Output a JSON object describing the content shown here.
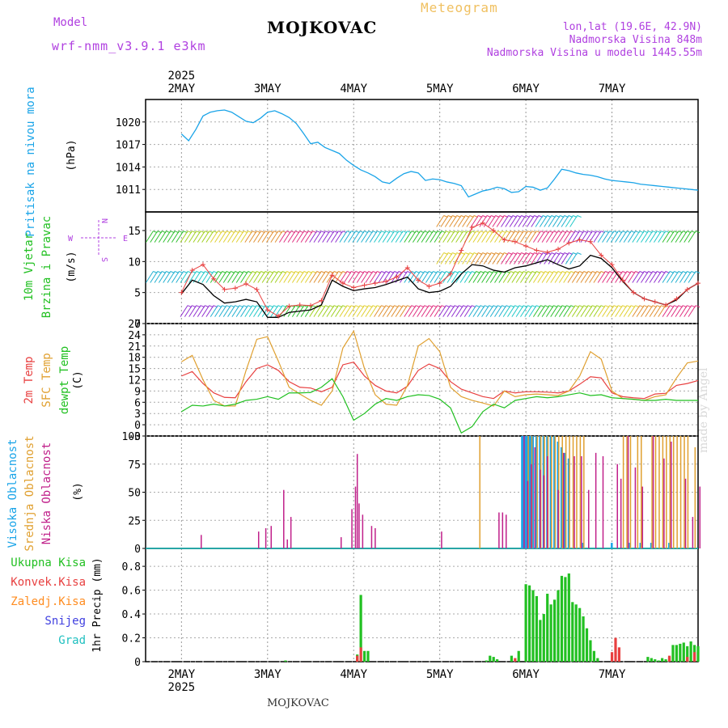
{
  "header": {
    "model_label": "Model",
    "model_name": "wrf-nmm_v3.9.1 e3km",
    "station": "MOJKOVAC",
    "meteogram": "Meteogram",
    "lonlat": "lon,lat (19.6E, 42.9N)",
    "elevation": "Nadmorska Visina 848m",
    "model_elevation": "Nadmorska Visina u modelu 1445.55m",
    "footer": "MOJKOVAC",
    "watermark": "made by Angel"
  },
  "colors": {
    "pressure": "#1aa4e8",
    "wind_green": "#22c022",
    "temp2m": "#e84040",
    "sfc": "#e0a030",
    "dew": "#20c020",
    "high_cloud": "#1aa4e8",
    "mid_cloud": "#e0a030",
    "low_cloud": "#c0208a",
    "purple": "#b040e0",
    "frozen": "#ff8c20",
    "snow": "#4040e0",
    "hail": "#20c0c0"
  },
  "chart_data": [
    {
      "type": "line",
      "name": "pressure",
      "title": "Pritisak na nivou mora",
      "ylabel": "(hPa)",
      "yticks": [
        "1011",
        "1014",
        "1017",
        "1020"
      ],
      "ylim": [
        1008,
        1023
      ],
      "x_days": [
        "2MAY",
        "3MAY",
        "4MAY",
        "5MAY",
        "6MAY",
        "7MAY"
      ],
      "year": "2025",
      "x": [
        0,
        2,
        4,
        6,
        8,
        10,
        12,
        14,
        16,
        18,
        20,
        22,
        24,
        26,
        28,
        30,
        32,
        34,
        36,
        38,
        40,
        42,
        44,
        46,
        48,
        50,
        52,
        54,
        56,
        58,
        60,
        62,
        64,
        66,
        68,
        70,
        72,
        74,
        76,
        78,
        80,
        82,
        84,
        86,
        88,
        90,
        92,
        94,
        96,
        98,
        100,
        102,
        104,
        106,
        108,
        110,
        112,
        114,
        116,
        118,
        120,
        122,
        124,
        126,
        128,
        130,
        132,
        134,
        136,
        138,
        140,
        142,
        144
      ],
      "values": [
        1018.4,
        1017.5,
        1019.0,
        1020.8,
        1021.3,
        1021.5,
        1021.6,
        1021.3,
        1020.7,
        1020.1,
        1019.9,
        1020.5,
        1021.3,
        1021.5,
        1021.1,
        1020.6,
        1019.8,
        1018.5,
        1017.1,
        1017.3,
        1016.6,
        1016.2,
        1015.8,
        1014.9,
        1014.2,
        1013.6,
        1013.2,
        1012.7,
        1012.0,
        1011.8,
        1012.5,
        1013.1,
        1013.4,
        1013.2,
        1012.2,
        1012.4,
        1012.3,
        1012.0,
        1011.8,
        1011.5,
        1010.0,
        1010.4,
        1010.8,
        1011.0,
        1011.3,
        1011.1,
        1010.6,
        1010.7,
        1011.4,
        1011.3,
        1010.9,
        1011.2,
        1012.4,
        1013.7,
        1013.5,
        1013.2,
        1013.0,
        1012.9,
        1012.7,
        1012.4,
        1012.2,
        1012.1,
        1012.0,
        1011.9,
        1011.7,
        1011.6,
        1011.5,
        1011.4,
        1011.3,
        1011.2,
        1011.1,
        1011.0,
        1010.9
      ]
    },
    {
      "type": "line",
      "name": "wind",
      "title_lines": [
        "10m Vjetar",
        "Brzina i Pravac"
      ],
      "ylabel": "(m/s)",
      "yticks": [
        "0",
        "5",
        "10",
        "15"
      ],
      "ylim": [
        0,
        18
      ],
      "compass": {
        "n": "N",
        "s": "S",
        "e": "E",
        "w": "W"
      },
      "x": [
        0,
        3,
        6,
        9,
        12,
        15,
        18,
        21,
        24,
        27,
        30,
        33,
        36,
        39,
        42,
        45,
        48,
        51,
        54,
        57,
        60,
        63,
        66,
        69,
        72,
        75,
        78,
        81,
        84,
        87,
        90,
        93,
        96,
        99,
        102,
        105,
        108,
        111,
        114,
        117,
        120,
        123,
        126,
        129,
        132,
        135,
        138,
        141,
        144
      ],
      "gust": [
        5.0,
        8.6,
        9.5,
        7.2,
        5.5,
        5.7,
        6.4,
        5.5,
        2.2,
        1.2,
        2.8,
        3.0,
        2.9,
        3.7,
        7.8,
        6.5,
        5.8,
        6.2,
        6.5,
        6.8,
        7.5,
        9.0,
        7.0,
        6.0,
        6.5,
        8.0,
        11.8,
        15.5,
        16.2,
        15.0,
        13.5,
        13.2,
        12.5,
        11.8,
        11.5,
        12.0,
        13.0,
        13.5,
        13.2,
        11.0,
        9.5,
        7.0,
        5.0,
        4.0,
        3.5,
        3.0,
        4.0,
        5.5,
        6.5
      ],
      "mean": [
        4.8,
        7.0,
        6.3,
        4.5,
        3.3,
        3.5,
        3.9,
        3.5,
        1.0,
        1.0,
        1.8,
        2.0,
        2.2,
        3.0,
        7.0,
        6.0,
        5.3,
        5.6,
        5.8,
        6.3,
        6.9,
        7.5,
        5.6,
        5.0,
        5.2,
        6.0,
        8.0,
        9.5,
        9.3,
        8.6,
        8.3,
        9.0,
        9.3,
        9.8,
        10.3,
        9.5,
        8.8,
        9.3,
        11.0,
        10.5,
        9.0,
        6.8,
        5.0,
        4.0,
        3.5,
        3.0,
        3.8,
        5.5,
        6.5
      ],
      "barb_bands": [
        2,
        7.5,
        14
      ],
      "barb_bands_day6": [
        10.5,
        16.5
      ]
    },
    {
      "type": "line",
      "name": "temperature",
      "title_lines": [
        "2m Temp",
        "SFC Temp",
        "dewpt Temp"
      ],
      "ylabel": "(C)",
      "yticks": [
        "-3",
        "0",
        "3",
        "6",
        "9",
        "12",
        "15",
        "18",
        "21",
        "24",
        "27"
      ],
      "ylim": [
        -3,
        27
      ],
      "x": [
        0,
        3,
        6,
        9,
        12,
        15,
        18,
        21,
        24,
        27,
        30,
        33,
        36,
        39,
        42,
        45,
        48,
        51,
        54,
        57,
        60,
        63,
        66,
        69,
        72,
        75,
        78,
        81,
        84,
        87,
        90,
        93,
        96,
        99,
        102,
        105,
        108,
        111,
        114,
        117,
        120,
        123,
        126,
        129,
        132,
        135,
        138,
        141,
        144
      ],
      "series": [
        {
          "name": "2m Temp",
          "values": [
            13.0,
            14.2,
            11.0,
            8.5,
            7.3,
            7.2,
            11.5,
            15.0,
            16.0,
            14.5,
            11.5,
            10.0,
            9.8,
            8.8,
            10.0,
            16.0,
            16.7,
            13.0,
            10.5,
            9.0,
            8.5,
            10.3,
            14.5,
            16.2,
            15.0,
            11.5,
            9.5,
            8.5,
            7.5,
            7.0,
            9.0,
            8.5,
            8.8,
            8.8,
            8.7,
            8.5,
            9.0,
            10.8,
            12.8,
            12.5,
            8.5,
            7.5,
            7.2,
            7.0,
            8.2,
            8.4,
            10.5,
            11.0,
            11.8
          ]
        },
        {
          "name": "SFC Temp",
          "values": [
            16.8,
            18.5,
            12.0,
            6.5,
            5.0,
            5.0,
            14.5,
            22.8,
            23.5,
            17.0,
            10.0,
            8.2,
            6.5,
            5.2,
            9.0,
            20.5,
            25.0,
            15.0,
            8.0,
            5.5,
            5.2,
            10.5,
            21.0,
            23.0,
            19.5,
            10.0,
            7.5,
            6.5,
            5.8,
            5.0,
            9.0,
            7.5,
            8.0,
            8.2,
            8.0,
            7.8,
            9.0,
            13.0,
            19.5,
            17.5,
            9.0,
            7.0,
            6.8,
            6.5,
            7.5,
            8.0,
            12.5,
            16.5,
            17.0
          ]
        },
        {
          "name": "dewpt Temp",
          "values": [
            3.5,
            5.2,
            5.0,
            5.5,
            5.0,
            5.5,
            6.5,
            6.8,
            7.5,
            6.8,
            8.5,
            8.5,
            8.6,
            10.0,
            12.3,
            7.5,
            1.2,
            3.0,
            5.5,
            7.0,
            6.5,
            7.5,
            8.0,
            7.8,
            6.8,
            4.5,
            -2.2,
            -0.5,
            3.5,
            5.5,
            4.5,
            6.5,
            7.0,
            7.5,
            7.2,
            7.5,
            8.0,
            8.5,
            7.8,
            8.0,
            7.2,
            7.0,
            6.8,
            6.5,
            6.5,
            6.8,
            6.5,
            6.5,
            6.5
          ]
        }
      ]
    },
    {
      "type": "bar",
      "name": "cloud",
      "title_lines": [
        "Visoka Oblacnost",
        "Srednja Oblacnost",
        "Niska Oblacnost"
      ],
      "ylabel": "(%)",
      "yticks": [
        "0",
        "25",
        "50",
        "75",
        "100"
      ],
      "ylim": [
        0,
        100
      ],
      "series": [
        {
          "name": "Visoka Oblacnost",
          "x": [
            95.0,
            95.5,
            96.0,
            96.5,
            97.0,
            97.5,
            98.0,
            99.0,
            100.0,
            101.0,
            102.0,
            103.0,
            104.0,
            105.0,
            106.0,
            107.0,
            108.0,
            112.0,
            120.0,
            125.0,
            128.0,
            131.0,
            136.0
          ],
          "values": [
            100,
            100,
            100,
            100,
            100,
            100,
            100,
            100,
            100,
            100,
            100,
            100,
            100,
            95,
            90,
            85,
            80,
            5,
            5,
            5,
            5,
            5,
            5
          ]
        },
        {
          "name": "Srednja Oblacnost",
          "x": [
            83.0,
            96.5,
            97.5,
            99.0,
            100.0,
            101.0,
            102.0,
            103.0,
            104.0,
            105.0,
            106.0,
            107.0,
            108.0,
            109.0,
            110.0,
            111.0,
            112.0,
            123.0,
            124.0,
            125.0,
            127.0,
            128.0,
            131.0,
            132.0,
            133.0,
            134.0,
            135.0,
            136.0,
            137.0,
            138.0,
            139.0,
            140.0,
            141.0,
            143.0
          ],
          "values": [
            100,
            100,
            100,
            100,
            100,
            100,
            100,
            100,
            100,
            100,
            100,
            100,
            100,
            100,
            100,
            100,
            100,
            100,
            100,
            100,
            100,
            100,
            100,
            100,
            100,
            100,
            100,
            100,
            100,
            100,
            100,
            100,
            100,
            90
          ]
        },
        {
          "name": "Niska Oblacnost",
          "x": [
            5.0,
            21.0,
            23.0,
            24.5,
            28.0,
            29.0,
            30.0,
            44.0,
            47.0,
            48.0,
            48.5,
            49.0,
            50.0,
            52.5,
            53.5,
            72.0,
            88.0,
            89.0,
            90.0,
            95.0,
            96.0,
            97.0,
            98.0,
            99.5,
            100.5,
            101.5,
            104.5,
            106.0,
            109.0,
            111.0,
            113.0,
            115.0,
            117.0,
            121.0,
            122.0,
            124.0,
            126.0,
            128.0,
            131.0,
            134.0,
            136.0,
            140.0,
            142.0,
            144.0
          ],
          "values": [
            12,
            15,
            18,
            20,
            52,
            8,
            28,
            10,
            35,
            55,
            84,
            40,
            30,
            20,
            18,
            15,
            32,
            32,
            30,
            100,
            60,
            75,
            90,
            70,
            65,
            82,
            52,
            85,
            82,
            82,
            52,
            85,
            82,
            75,
            62,
            100,
            72,
            55,
            100,
            80,
            95,
            62,
            28,
            55
          ]
        }
      ]
    },
    {
      "type": "bar",
      "name": "precip",
      "title_lines": [
        "Ukupna Kisa",
        "Konvek.Kisa",
        "Zaledj.Kisa",
        "Snijeg",
        "Grad"
      ],
      "ylabel": "1hr Precip (mm)",
      "yticks": [
        "0",
        "0.2",
        "0.4",
        "0.6",
        "0.8"
      ],
      "ylim": [
        0,
        0.95
      ],
      "series": [
        {
          "name": "Ukupna Kisa",
          "x": [
            29,
            49,
            50,
            51,
            52,
            85,
            86,
            87,
            88,
            92,
            94,
            96,
            97,
            98,
            99,
            100,
            101,
            102,
            103,
            104,
            105,
            106,
            107,
            108,
            109,
            110,
            111,
            112,
            113,
            114,
            115,
            116,
            130,
            131,
            132,
            133,
            134,
            135,
            136,
            137,
            138,
            139,
            140,
            141,
            142,
            143,
            144
          ],
          "values": [
            0.01,
            0.06,
            0.56,
            0.09,
            0.09,
            0.01,
            0.05,
            0.04,
            0.02,
            0.05,
            0.09,
            0.65,
            0.64,
            0.6,
            0.55,
            0.35,
            0.4,
            0.57,
            0.48,
            0.52,
            0.6,
            0.72,
            0.71,
            0.74,
            0.5,
            0.48,
            0.45,
            0.38,
            0.28,
            0.18,
            0.09,
            0.03,
            0.04,
            0.03,
            0.02,
            0.01,
            0.03,
            0.02,
            0.04,
            0.14,
            0.14,
            0.15,
            0.16,
            0.13,
            0.17,
            0.14,
            0.13
          ]
        },
        {
          "name": "Konvek.Kisa",
          "x": [
            49,
            50,
            93,
            120,
            121,
            122,
            136,
            141,
            143
          ],
          "values": [
            0.05,
            0.12,
            0.03,
            0.08,
            0.2,
            0.12,
            0.05,
            0.04,
            0.08
          ]
        },
        {
          "name": "Zaledj.Kisa",
          "x": [],
          "values": []
        },
        {
          "name": "Snijeg",
          "x": [],
          "values": []
        },
        {
          "name": "Grad",
          "x": [],
          "values": []
        }
      ]
    }
  ]
}
